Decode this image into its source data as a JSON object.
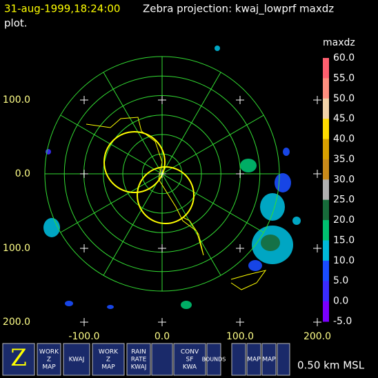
{
  "header": {
    "timestamp": "31-aug-1999,18:24:00",
    "title": "Zebra projection: kwaj_lowprf maxdz",
    "title_cont": "plot."
  },
  "axes": {
    "x_labels": [
      "-100.0",
      "0.0",
      "100.0",
      "200.0"
    ],
    "y_labels": [
      "100.0",
      "0.0",
      "100.0",
      "200.0"
    ]
  },
  "colorbar": {
    "title": "maxdz",
    "labels": [
      "60.0",
      "55.0",
      "50.0",
      "45.0",
      "40.0",
      "35.0",
      "30.0",
      "25.0",
      "20.0",
      "15.0",
      "10.0",
      "5.0",
      "0.0",
      "-5.0"
    ],
    "colors": [
      "#ff5f6f",
      "#ff8f7f",
      "#f2d3a8",
      "#ffdc00",
      "#d8a000",
      "#c98a1a",
      "#b0b0b0",
      "#176b3a",
      "#00c070",
      "#00b8d8",
      "#1a4cff",
      "#3a2cff",
      "#7a00ff"
    ]
  },
  "toolbar": {
    "buttons": [
      {
        "lines": [
          "Z"
        ]
      },
      {
        "lines": [
          "WORK",
          "Z",
          "MAP"
        ]
      },
      {
        "lines": [
          "KWAJ"
        ]
      },
      {
        "lines": [
          "WORK",
          "Z",
          "MAP"
        ]
      },
      {
        "lines": [
          "RAIN",
          "RATE",
          "KWAJ"
        ]
      },
      {
        "lines": [
          "CONV",
          "SF",
          "KWA"
        ]
      },
      {
        "lines": [
          "BOUNDS"
        ]
      },
      {
        "lines": [
          "MAP"
        ]
      },
      {
        "lines": [
          "MAP"
        ]
      }
    ],
    "altitude": "0.50 km MSL"
  }
}
